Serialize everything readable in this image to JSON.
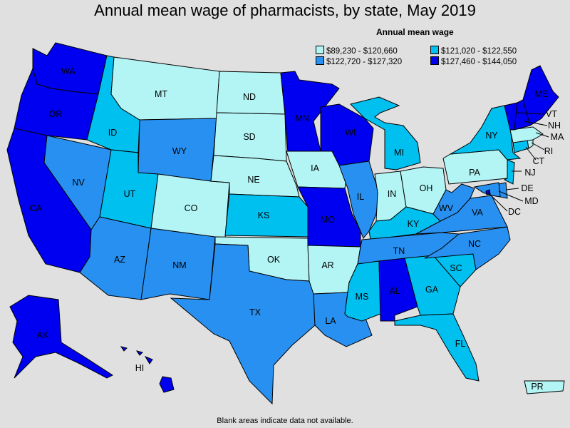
{
  "title": "Annual mean wage of pharmacists, by state, May 2019",
  "legend": {
    "title": "Annual mean wage",
    "items": [
      {
        "label": "$89,230 - $120,660",
        "color": "#b3f5f5"
      },
      {
        "label": "$121,020 - $122,550",
        "color": "#00c0f0"
      },
      {
        "label": "$122,720 - $127,320",
        "color": "#2890f0"
      },
      {
        "label": "$127,460 - $144,050",
        "color": "#0000f0"
      }
    ]
  },
  "footnote": "Blank areas indicate data not available.",
  "states": [
    {
      "abbr": "WA",
      "bin": 3
    },
    {
      "abbr": "OR",
      "bin": 3
    },
    {
      "abbr": "CA",
      "bin": 3
    },
    {
      "abbr": "NV",
      "bin": 2
    },
    {
      "abbr": "ID",
      "bin": 1
    },
    {
      "abbr": "MT",
      "bin": 0
    },
    {
      "abbr": "WY",
      "bin": 2
    },
    {
      "abbr": "UT",
      "bin": 1
    },
    {
      "abbr": "AZ",
      "bin": 2
    },
    {
      "abbr": "CO",
      "bin": 0
    },
    {
      "abbr": "NM",
      "bin": 2
    },
    {
      "abbr": "ND",
      "bin": 0
    },
    {
      "abbr": "SD",
      "bin": 0
    },
    {
      "abbr": "NE",
      "bin": 0
    },
    {
      "abbr": "KS",
      "bin": 1
    },
    {
      "abbr": "OK",
      "bin": 0
    },
    {
      "abbr": "TX",
      "bin": 2
    },
    {
      "abbr": "MN",
      "bin": 3
    },
    {
      "abbr": "IA",
      "bin": 0
    },
    {
      "abbr": "MO",
      "bin": 3
    },
    {
      "abbr": "AR",
      "bin": 0
    },
    {
      "abbr": "LA",
      "bin": 2
    },
    {
      "abbr": "WI",
      "bin": 3
    },
    {
      "abbr": "IL",
      "bin": 2
    },
    {
      "abbr": "MI",
      "bin": 1
    },
    {
      "abbr": "IN",
      "bin": 0
    },
    {
      "abbr": "OH",
      "bin": 0
    },
    {
      "abbr": "KY",
      "bin": 1
    },
    {
      "abbr": "TN",
      "bin": 2
    },
    {
      "abbr": "MS",
      "bin": 1
    },
    {
      "abbr": "AL",
      "bin": 3
    },
    {
      "abbr": "GA",
      "bin": 1
    },
    {
      "abbr": "FL",
      "bin": 1
    },
    {
      "abbr": "SC",
      "bin": 1
    },
    {
      "abbr": "NC",
      "bin": 2
    },
    {
      "abbr": "VA",
      "bin": 2
    },
    {
      "abbr": "WV",
      "bin": 2
    },
    {
      "abbr": "PA",
      "bin": 0
    },
    {
      "abbr": "NY",
      "bin": 1
    },
    {
      "abbr": "VT",
      "bin": 3
    },
    {
      "abbr": "NH",
      "bin": 3
    },
    {
      "abbr": "ME",
      "bin": 3
    },
    {
      "abbr": "MA",
      "bin": 0
    },
    {
      "abbr": "RI",
      "bin": 0
    },
    {
      "abbr": "CT",
      "bin": 1
    },
    {
      "abbr": "NJ",
      "bin": 1
    },
    {
      "abbr": "DE",
      "bin": 2
    },
    {
      "abbr": "MD",
      "bin": 2
    },
    {
      "abbr": "DC",
      "bin": 3
    },
    {
      "abbr": "AK",
      "bin": 3
    },
    {
      "abbr": "HI",
      "bin": 3
    },
    {
      "abbr": "PR",
      "bin": 0
    }
  ]
}
